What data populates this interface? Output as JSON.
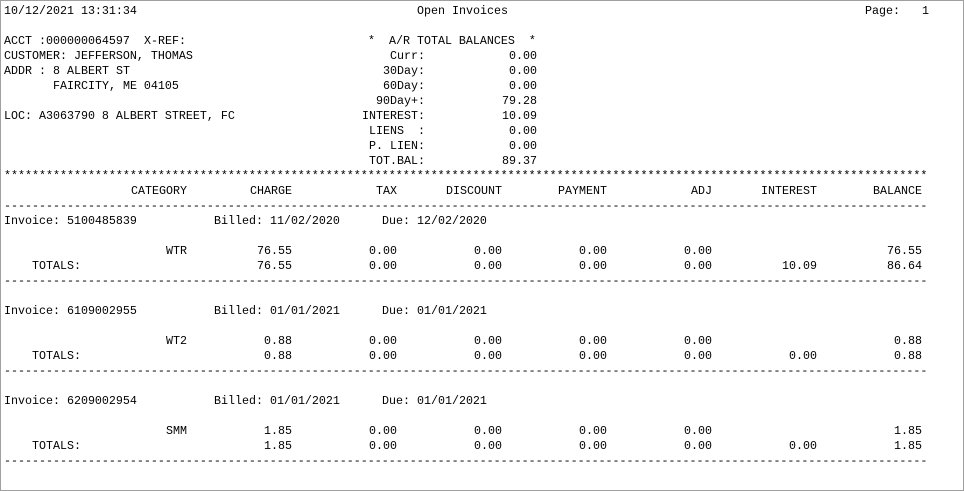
{
  "header": {
    "date_time": "10/12/2021 13:31:34",
    "title": "Open Invoices",
    "page_label": "Page:",
    "page_number": "1"
  },
  "account": {
    "acct": "ACCT :000000064597",
    "xref": "X-REF:",
    "customer": "CUSTOMER: JEFFERSON, THOMAS",
    "addr_label": "ADDR :",
    "addr_line1": "8 ALBERT ST",
    "addr_line2": "FAIRCITY, ME 04105",
    "loc": "LOC: A3063790 8 ALBERT STREET, FC"
  },
  "balances": {
    "title": "*  A/R TOTAL BALANCES  *",
    "items": [
      {
        "label": "Curr:",
        "value": "0.00"
      },
      {
        "label": "30Day:",
        "value": "0.00"
      },
      {
        "label": "60Day:",
        "value": "0.00"
      },
      {
        "label": "90Day+:",
        "value": "79.28"
      },
      {
        "label": "INTEREST:",
        "value": "10.09"
      },
      {
        "label": "LIENS  :",
        "value": "0.00"
      },
      {
        "label": "P. LIEN:",
        "value": "0.00"
      },
      {
        "label": "TOT.BAL:",
        "value": "89.37"
      }
    ]
  },
  "separators": {
    "stars": "************************************************************************************************************************************",
    "dashes": "------------------------------------------------------------------------------------------------------------------------------------"
  },
  "columns": [
    "CATEGORY",
    "CHARGE",
    "TAX",
    "DISCOUNT",
    "PAYMENT",
    "ADJ",
    "INTEREST",
    "BALANCE"
  ],
  "invoices": [
    {
      "label": "Invoice: 5100485839",
      "billed": "Billed: 11/02/2020",
      "due": "Due: 12/02/2020",
      "item": [
        "WTR",
        "76.55",
        "0.00",
        "0.00",
        "0.00",
        "0.00",
        null,
        "76.55"
      ],
      "totals": [
        "TOTALS:",
        "76.55",
        "0.00",
        "0.00",
        "0.00",
        "0.00",
        "10.09",
        "86.64"
      ]
    },
    {
      "label": "Invoice: 6109002955",
      "billed": "Billed: 01/01/2021",
      "due": "Due: 01/01/2021",
      "item": [
        "WT2",
        "0.88",
        "0.00",
        "0.00",
        "0.00",
        "0.00",
        null,
        "0.88"
      ],
      "totals": [
        "TOTALS:",
        "0.88",
        "0.00",
        "0.00",
        "0.00",
        "0.00",
        "0.00",
        "0.88"
      ]
    },
    {
      "label": "Invoice: 6209002954",
      "billed": "Billed: 01/01/2021",
      "due": "Due: 01/01/2021",
      "item": [
        "SMM",
        "1.85",
        "0.00",
        "0.00",
        "0.00",
        "0.00",
        null,
        "1.85"
      ],
      "totals": [
        "TOTALS:",
        "1.85",
        "0.00",
        "0.00",
        "0.00",
        "0.00",
        "0.00",
        "1.85"
      ]
    }
  ]
}
